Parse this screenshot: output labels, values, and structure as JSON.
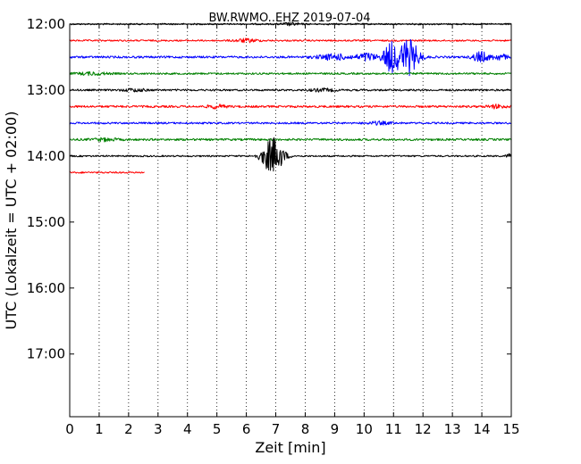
{
  "chart_data": {
    "type": "line",
    "title": "BW.RWMO..EHZ 2019-07-04",
    "xlabel": "Zeit  [min]",
    "ylabel": "UTC (Lokalzeit = UTC + 02:00)",
    "xlim": [
      0,
      15
    ],
    "ylim_hours_utc": [
      12.0,
      17.95
    ],
    "x_ticks": [
      0,
      1,
      2,
      3,
      4,
      5,
      6,
      7,
      8,
      9,
      10,
      11,
      12,
      13,
      14,
      15
    ],
    "y_ticks": [
      "12:00",
      "13:00",
      "14:00",
      "15:00",
      "16:00",
      "17:00"
    ],
    "vertical_grid": "dotted at each minute",
    "traces": [
      {
        "start_utc": "12:00",
        "color": "#000000",
        "noise": 0.012,
        "end_min": 15,
        "events": [
          {
            "t": 7.5,
            "amp": 0.02,
            "w": 0.3
          }
        ]
      },
      {
        "start_utc": "12:15",
        "color": "#ff0000",
        "noise": 0.012,
        "end_min": 15,
        "events": [
          {
            "t": 6.0,
            "amp": 0.025,
            "w": 0.4
          }
        ]
      },
      {
        "start_utc": "12:30",
        "color": "#0000ff",
        "noise": 0.016,
        "end_min": 15,
        "events": [
          {
            "t": 9.0,
            "amp": 0.04,
            "w": 0.6
          },
          {
            "t": 10.1,
            "amp": 0.06,
            "w": 0.3
          },
          {
            "t": 10.9,
            "amp": 0.22,
            "w": 0.25
          },
          {
            "t": 11.5,
            "amp": 0.27,
            "w": 0.35
          },
          {
            "t": 13.95,
            "amp": 0.08,
            "w": 0.25
          },
          {
            "t": 14.6,
            "amp": 0.04,
            "w": 0.3
          }
        ]
      },
      {
        "start_utc": "12:45",
        "color": "#008000",
        "noise": 0.014,
        "end_min": 15,
        "events": [
          {
            "t": 0.8,
            "amp": 0.02,
            "w": 0.5
          }
        ]
      },
      {
        "start_utc": "13:00",
        "color": "#000000",
        "noise": 0.014,
        "end_min": 15,
        "events": [
          {
            "t": 2.2,
            "amp": 0.02,
            "w": 0.4
          },
          {
            "t": 8.6,
            "amp": 0.02,
            "w": 0.4
          }
        ]
      },
      {
        "start_utc": "13:15",
        "color": "#ff0000",
        "noise": 0.016,
        "end_min": 15,
        "events": [
          {
            "t": 5.0,
            "amp": 0.025,
            "w": 0.3
          },
          {
            "t": 14.5,
            "amp": 0.025,
            "w": 0.3
          }
        ]
      },
      {
        "start_utc": "13:30",
        "color": "#0000ff",
        "noise": 0.014,
        "end_min": 15,
        "events": [
          {
            "t": 10.5,
            "amp": 0.02,
            "w": 0.4
          }
        ]
      },
      {
        "start_utc": "13:45",
        "color": "#008000",
        "noise": 0.016,
        "end_min": 15,
        "events": [
          {
            "t": 1.2,
            "amp": 0.02,
            "w": 0.4
          }
        ]
      },
      {
        "start_utc": "14:00",
        "color": "#000000",
        "noise": 0.012,
        "end_min": 15,
        "events": [
          {
            "t": 6.9,
            "amp": 0.28,
            "w": 0.35
          },
          {
            "t": 15.0,
            "amp": 0.04,
            "w": 0.15
          }
        ]
      },
      {
        "start_utc": "14:15",
        "color": "#ff0000",
        "noise": 0.012,
        "end_min": 2.55,
        "events": []
      }
    ]
  }
}
